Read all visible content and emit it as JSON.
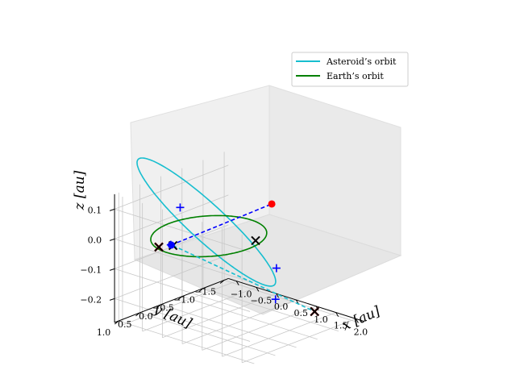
{
  "chart_data": {
    "type": "scatter",
    "projection": "3d",
    "title": "",
    "xlabel": "x [au]",
    "ylabel": "y [au]",
    "zlabel": "z [au]",
    "xlim": [
      -1.2,
      2.2
    ],
    "ylim": [
      -1.6,
      1.1
    ],
    "zlim": [
      -0.28,
      0.15
    ],
    "xticks": [
      -1.0,
      -0.5,
      0.0,
      0.5,
      1.0,
      1.5,
      2.0
    ],
    "xtick_labels": [
      "−1.0",
      "−0.5",
      "0.0",
      "0.5",
      "1.0",
      "1.5",
      "2.0"
    ],
    "yticks": [
      1.0,
      0.5,
      0.0,
      -0.5,
      -1.0,
      -1.5
    ],
    "ytick_labels": [
      "1.0",
      "0.5",
      "0.0",
      "−0.5",
      "−1.0",
      "−1.5"
    ],
    "zticks": [
      0.1,
      0.0,
      -0.1,
      -0.2
    ],
    "ztick_labels": [
      "0.1",
      "0.0",
      "−0.1",
      "−0.2"
    ],
    "grid": true,
    "legend_position": "top-right",
    "series": [
      {
        "name": "Asteroid’s orbit",
        "kind": "line",
        "color": "#17becf",
        "orbit": {
          "a": 1.4,
          "e": 0.5,
          "inclination_deg": 10,
          "rotation_deg": 40
        }
      },
      {
        "name": "Earth’s orbit",
        "kind": "line",
        "color": "#008000",
        "orbit": {
          "a": 1.0,
          "e": 0.0,
          "inclination_deg": 0,
          "rotation_deg": 0
        }
      }
    ],
    "markers": {
      "earth_position": {
        "color": "#0000ff",
        "point": [
          -0.2,
          0.7,
          0.0
        ]
      },
      "asteroid_position": {
        "color": "#ff0000",
        "point": [
          1.0,
          -0.55,
          0.12
        ]
      },
      "asteroid_plus_marks": {
        "color": "#0000ff",
        "points": [
          [
            0.5,
            1.15,
            0.18
          ],
          [
            0.0,
            0.9,
            0.02
          ],
          [
            0.8,
            -0.85,
            -0.12
          ],
          [
            0.3,
            -1.3,
            -0.27
          ]
        ]
      },
      "x_marks_red": {
        "color": "#cc0000",
        "points": [
          [
            -0.3,
            0.9,
            0.0
          ],
          [
            1.6,
            -1.0,
            -0.24
          ]
        ]
      },
      "x_marks_black": {
        "color": "#000000",
        "points": [
          [
            -0.3,
            0.9,
            0.0
          ],
          [
            1.6,
            -1.0,
            -0.24
          ],
          [
            -0.05,
            0.8,
            0.01
          ],
          [
            0.7,
            -0.45,
            -0.01
          ]
        ]
      }
    },
    "connectors": [
      {
        "from": "earth_position",
        "to": "asteroid_position",
        "color": "#0000ff",
        "style": "dashed"
      },
      {
        "from": [
          -0.05,
          0.8,
          0.01
        ],
        "to": [
          1.6,
          -1.0,
          -0.24
        ],
        "color": "#17becf",
        "style": "dashed"
      }
    ]
  }
}
